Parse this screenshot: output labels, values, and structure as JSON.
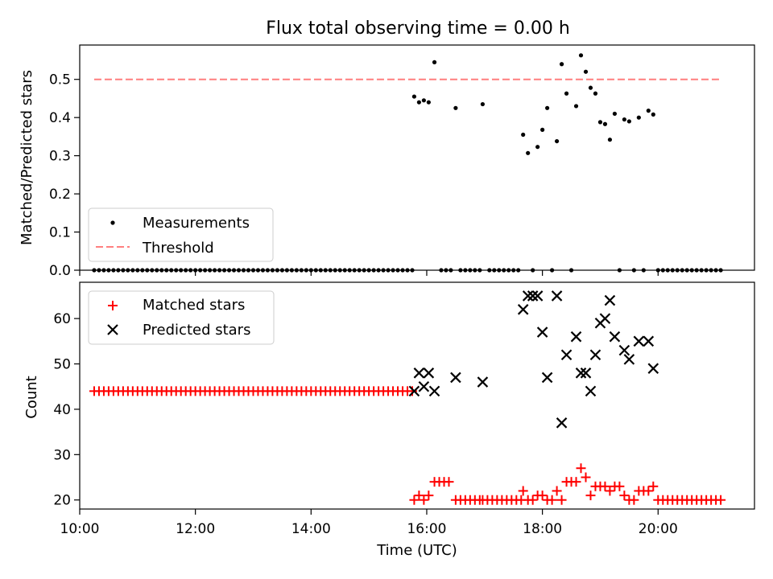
{
  "title": "Flux total observing time = 0.00 h",
  "colors": {
    "measurements": "#000000",
    "threshold": "#ff7f7f",
    "matched": "#ff0000",
    "predicted": "#000000"
  },
  "chart_data": [
    {
      "type": "scatter",
      "ylabel": "Matched/Predicted stars",
      "xlabel": "",
      "xlim": [
        "10:00",
        "21:40"
      ],
      "ylim": [
        0,
        0.59
      ],
      "yticks": [
        "0.0",
        "0.1",
        "0.2",
        "0.3",
        "0.4",
        "0.5"
      ],
      "legend": {
        "placement": "lower-left",
        "entries": [
          "Measurements",
          "Threshold"
        ]
      },
      "threshold": {
        "name": "Threshold",
        "value": 0.5,
        "x": [
          "10:15",
          "21:05"
        ]
      },
      "series": [
        {
          "name": "Measurements",
          "x": [
            "15:47",
            "15:52",
            "15:57",
            "16:02",
            "16:08",
            "16:30",
            "16:58",
            "17:40",
            "17:45",
            "17:55",
            "18:00",
            "18:05",
            "18:15",
            "18:20",
            "18:25",
            "18:35",
            "18:40",
            "18:45",
            "18:50",
            "18:55",
            "19:00",
            "19:05",
            "19:10",
            "19:15",
            "19:25",
            "19:30",
            "19:40",
            "19:50",
            "19:55"
          ],
          "y": [
            0.455,
            0.44,
            0.445,
            0.44,
            0.545,
            0.425,
            0.435,
            0.355,
            0.307,
            0.323,
            0.368,
            0.425,
            0.338,
            0.54,
            0.463,
            0.43,
            0.563,
            0.52,
            0.478,
            0.463,
            0.388,
            0.383,
            0.342,
            0.41,
            0.395,
            0.39,
            0.4,
            0.418,
            0.408
          ]
        },
        {
          "name": "Measurements (zero)",
          "x_start": "10:15",
          "x_end": "15:45",
          "x_step_min": 5,
          "x": [
            "16:15",
            "16:20",
            "16:25",
            "16:35",
            "16:40",
            "16:45",
            "16:50",
            "16:55",
            "17:05",
            "17:10",
            "17:15",
            "17:20",
            "17:25",
            "17:30",
            "17:35",
            "17:50",
            "18:10",
            "18:30",
            "19:20",
            "19:35",
            "19:45",
            "20:00",
            "20:05",
            "20:10",
            "20:15",
            "20:20",
            "20:25",
            "20:30",
            "20:35",
            "20:40",
            "20:45",
            "20:50",
            "20:55",
            "21:00",
            "21:05"
          ],
          "y": 0
        }
      ]
    },
    {
      "type": "scatter",
      "ylabel": "Count",
      "xlabel": "Time (UTC)",
      "xlim": [
        "10:00",
        "21:40"
      ],
      "ylim": [
        18,
        68
      ],
      "yticks": [
        "20",
        "30",
        "40",
        "50",
        "60"
      ],
      "xticks": [
        "10:00",
        "12:00",
        "14:00",
        "16:00",
        "18:00",
        "20:00"
      ],
      "legend": {
        "placement": "top-left",
        "entries": [
          "Matched stars",
          "Predicted stars"
        ]
      },
      "series": [
        {
          "name": "Matched stars",
          "early": {
            "x_start": "10:15",
            "x_end": "15:45",
            "x_step_min": 5,
            "y": 44
          },
          "x": [
            "15:47",
            "15:52",
            "15:57",
            "16:02",
            "16:08",
            "16:13",
            "16:18",
            "16:23",
            "16:30",
            "16:35",
            "16:40",
            "16:45",
            "16:50",
            "16:55",
            "16:58",
            "17:03",
            "17:08",
            "17:13",
            "17:18",
            "17:23",
            "17:28",
            "17:33",
            "17:38",
            "17:40",
            "17:45",
            "17:50",
            "17:55",
            "18:00",
            "18:05",
            "18:10",
            "18:15",
            "18:20",
            "18:25",
            "18:30",
            "18:35",
            "18:40",
            "18:45",
            "18:50",
            "18:55",
            "19:00",
            "19:05",
            "19:10",
            "19:15",
            "19:20",
            "19:25",
            "19:30",
            "19:35",
            "19:40",
            "19:45",
            "19:50",
            "19:55",
            "20:00",
            "20:05",
            "20:10",
            "20:15",
            "20:20",
            "20:25",
            "20:30",
            "20:35",
            "20:40",
            "20:45",
            "20:50",
            "20:55",
            "21:00",
            "21:05"
          ],
          "y": [
            20,
            21,
            20,
            21,
            24,
            24,
            24,
            24,
            20,
            20,
            20,
            20,
            20,
            20,
            20,
            20,
            20,
            20,
            20,
            20,
            20,
            20,
            20,
            22,
            20,
            20,
            21,
            21,
            20,
            20,
            22,
            20,
            24,
            24,
            24,
            27,
            25,
            21,
            23,
            23,
            23,
            22,
            23,
            23,
            21,
            20,
            20,
            22,
            22,
            22,
            23,
            20,
            20,
            20,
            20,
            20,
            20,
            20,
            20,
            20,
            20,
            20,
            20,
            20,
            20
          ]
        },
        {
          "name": "Predicted stars",
          "x": [
            "15:47",
            "15:52",
            "15:57",
            "16:02",
            "16:08",
            "16:30",
            "16:58",
            "17:40",
            "17:45",
            "17:50",
            "17:55",
            "18:00",
            "18:05",
            "18:15",
            "18:20",
            "18:25",
            "18:35",
            "18:40",
            "18:45",
            "18:50",
            "18:55",
            "19:00",
            "19:05",
            "19:10",
            "19:15",
            "19:25",
            "19:30",
            "19:40",
            "19:50",
            "19:55"
          ],
          "y": [
            44,
            48,
            45,
            48,
            44,
            47,
            46,
            62,
            65,
            65,
            65,
            57,
            47,
            65,
            37,
            52,
            56,
            48,
            48,
            44,
            52,
            59,
            60,
            64,
            56,
            53,
            51,
            55,
            55,
            49
          ]
        }
      ]
    }
  ]
}
